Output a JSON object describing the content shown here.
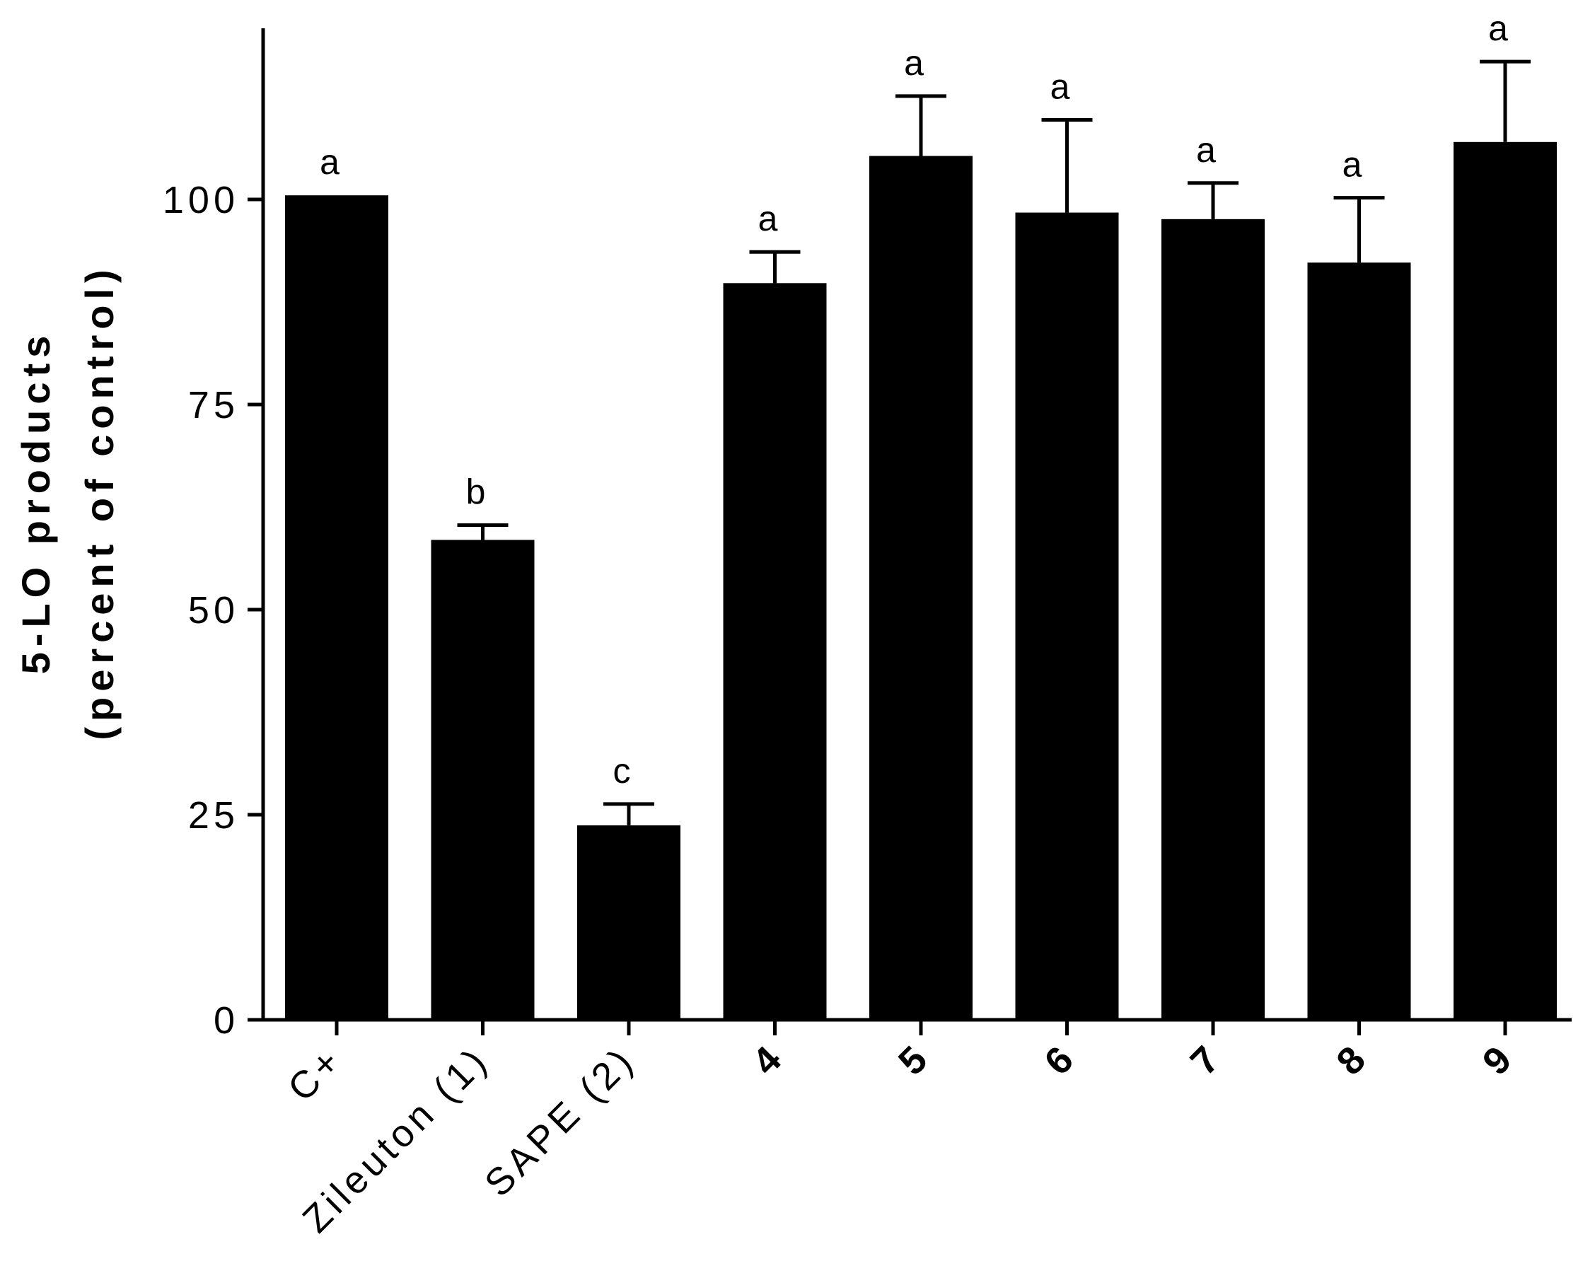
{
  "chart_data": {
    "type": "bar",
    "title": "",
    "ylabel_line1": "5-LO products",
    "ylabel_line2": "(percent of control)",
    "xlabel": "",
    "ylim": [
      0,
      120
    ],
    "yticks": [
      0,
      25,
      50,
      75,
      100
    ],
    "categories": [
      "C+",
      "Zileuton (1)",
      "SAPE (2)",
      "4",
      "5",
      "6",
      "7",
      "8",
      "9"
    ],
    "bold_categories": [
      "4",
      "5",
      "6",
      "7",
      "8",
      "9"
    ],
    "values": [
      100.5,
      58.5,
      23.7,
      89.8,
      105.3,
      98.4,
      97.6,
      92.3,
      107.0
    ],
    "errors": [
      0,
      1.8,
      2.6,
      3.8,
      7.3,
      11.3,
      4.4,
      7.9,
      9.8
    ],
    "significance": [
      "a",
      "b",
      "c",
      "a",
      "a",
      "a",
      "a",
      "a",
      "a"
    ],
    "bar_color": "#000000",
    "grid": false,
    "legend": "none"
  }
}
